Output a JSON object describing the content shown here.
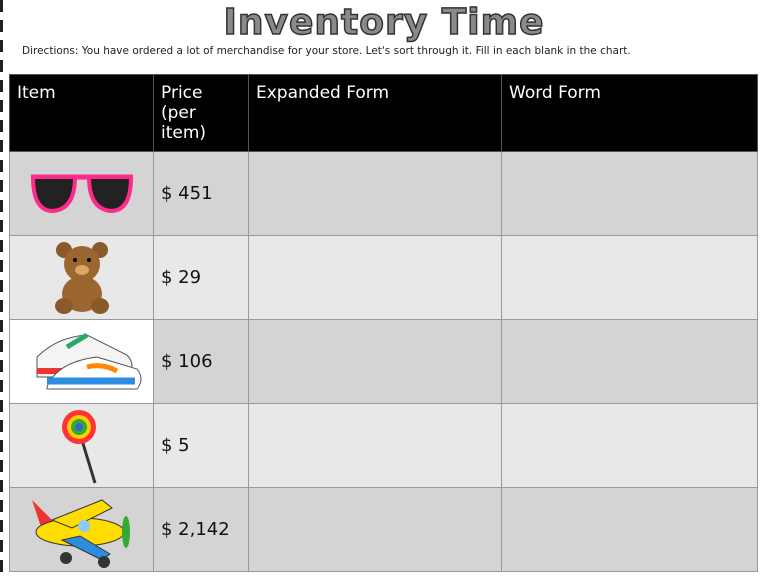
{
  "title": "Inventory Time",
  "directions": "Directions: You have ordered a lot of merchandise for your store.  Let's sort through it.  Fill in each blank in the chart.",
  "table": {
    "headers": [
      "Item",
      "Price\n(per item)",
      "Expanded Form",
      "Word Form"
    ],
    "header_price_line1": "Price",
    "header_price_line2": "(per item)",
    "rows": [
      {
        "item": "sunglasses-image",
        "price": "$ 451",
        "expanded": "",
        "word": ""
      },
      {
        "item": "teddy-bear-image",
        "price": "$ 29",
        "expanded": "",
        "word": ""
      },
      {
        "item": "sneakers-image",
        "price": "$ 106",
        "expanded": "",
        "word": ""
      },
      {
        "item": "lollipop-image",
        "price": "$ 5",
        "expanded": "",
        "word": ""
      },
      {
        "item": "toy-airplane-image",
        "price": "$ 2,142",
        "expanded": "",
        "word": ""
      }
    ]
  }
}
